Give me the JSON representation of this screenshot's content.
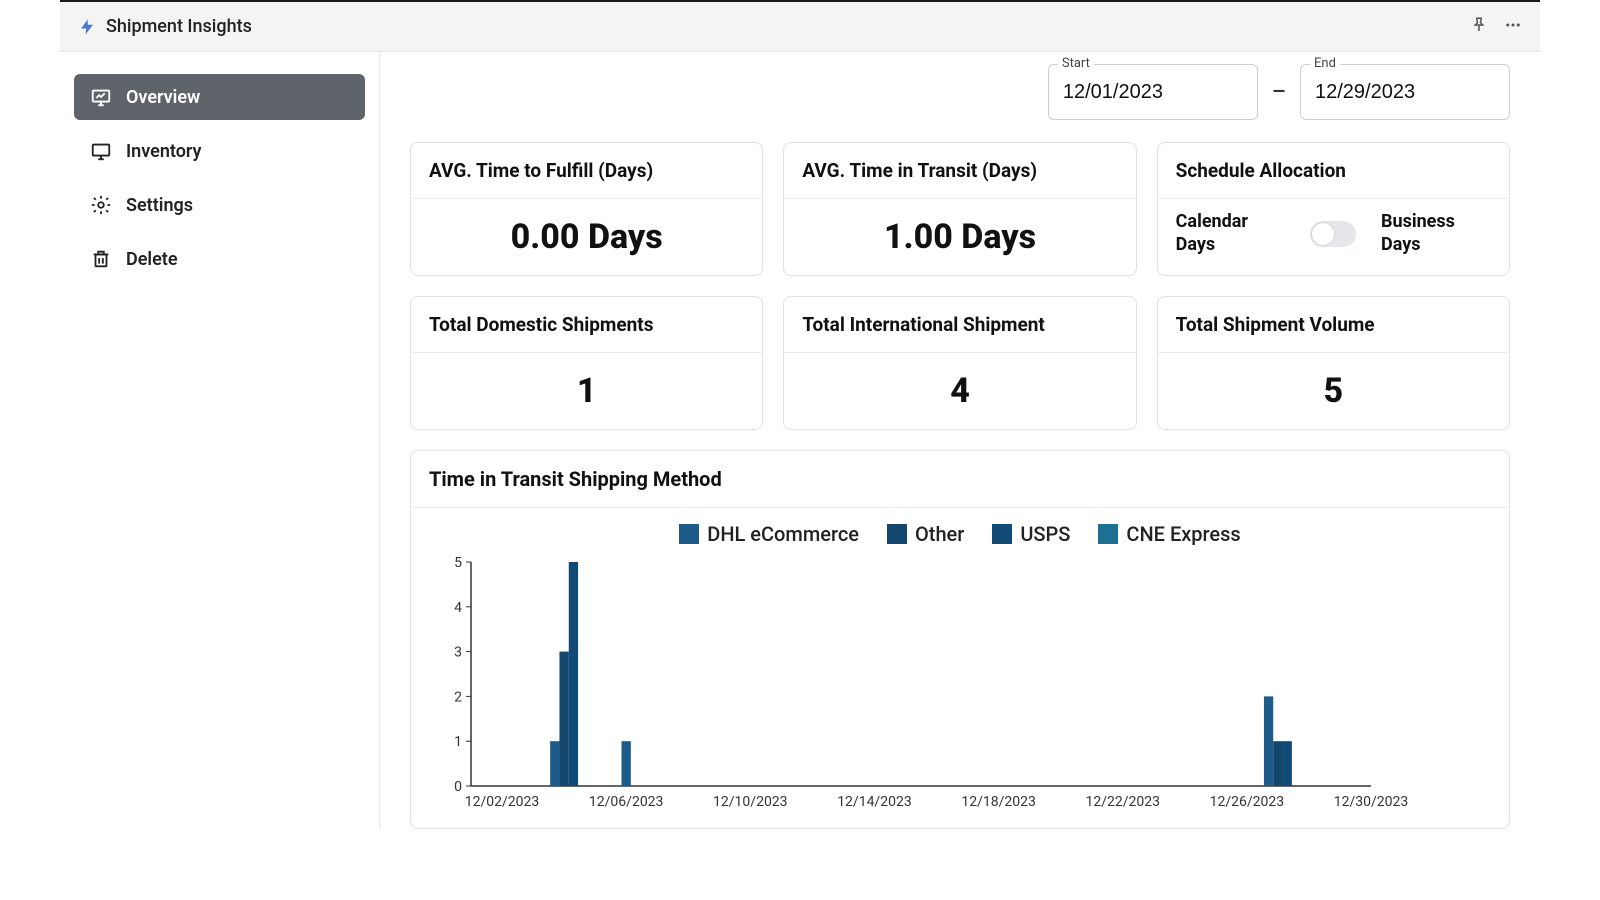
{
  "header": {
    "title": "Shipment Insights"
  },
  "sidebar": {
    "items": [
      {
        "label": "Overview",
        "icon": "overview",
        "active": true
      },
      {
        "label": "Inventory",
        "icon": "inventory",
        "active": false
      },
      {
        "label": "Settings",
        "icon": "gear",
        "active": false
      },
      {
        "label": "Delete",
        "icon": "trash",
        "active": false
      }
    ]
  },
  "dateRange": {
    "startLabel": "Start",
    "startValue": "12/01/2023",
    "endLabel": "End",
    "endValue": "12/29/2023",
    "separator": "–"
  },
  "metrics": {
    "avgFulfill": {
      "title": "AVG. Time to Fulfill (Days)",
      "value": "0.00 Days"
    },
    "avgTransit": {
      "title": "AVG. Time in Transit (Days)",
      "value": "1.00 Days"
    },
    "schedule": {
      "title": "Schedule Allocation",
      "leftLabel": "Calendar Days",
      "rightLabel": "Business Days",
      "toggleOn": false
    },
    "domestic": {
      "title": "Total Domestic Shipments",
      "value": "1"
    },
    "international": {
      "title": "Total International Shipment",
      "value": "4"
    },
    "volume": {
      "title": "Total Shipment Volume",
      "value": "5"
    }
  },
  "chart": {
    "title": "Time in Transit Shipping Method",
    "type": "bar",
    "colors": {
      "dhl": "#1d5b8a",
      "other": "#13476d",
      "usps": "#104a75",
      "cne": "#1d6f93",
      "axis": "#333333",
      "tickText": "#333333",
      "background": "#ffffff"
    },
    "legend": [
      {
        "key": "dhl",
        "label": "DHL eCommerce"
      },
      {
        "key": "other",
        "label": "Other"
      },
      {
        "key": "usps",
        "label": "USPS"
      },
      {
        "key": "cne",
        "label": "CNE Express"
      }
    ],
    "y": {
      "min": 0,
      "max": 5,
      "step": 1,
      "fontsize": 14
    },
    "x": {
      "ticks": [
        "12/02/2023",
        "12/06/2023",
        "12/10/2023",
        "12/14/2023",
        "12/18/2023",
        "12/22/2023",
        "12/26/2023",
        "12/30/2023"
      ],
      "fontsize": 14,
      "dateMin": "12/01/2023",
      "dateMax": "12/30/2023"
    },
    "barWidthDays": 0.3,
    "bars": [
      {
        "date": "12/04/2023",
        "offset": -0.3,
        "value": 1,
        "colorKey": "dhl"
      },
      {
        "date": "12/04/2023",
        "offset": 0.0,
        "value": 3,
        "colorKey": "other"
      },
      {
        "date": "12/04/2023",
        "offset": 0.3,
        "value": 5,
        "colorKey": "usps"
      },
      {
        "date": "12/06/2023",
        "offset": 0.0,
        "value": 1,
        "colorKey": "dhl"
      },
      {
        "date": "12/27/2023",
        "offset": -0.3,
        "value": 2,
        "colorKey": "dhl"
      },
      {
        "date": "12/27/2023",
        "offset": 0.0,
        "value": 1,
        "colorKey": "other"
      },
      {
        "date": "12/27/2023",
        "offset": 0.3,
        "value": 1,
        "colorKey": "usps"
      }
    ],
    "plot": {
      "widthPx": 950,
      "heightPx": 260,
      "marginLeft": 42,
      "marginBottom": 30,
      "marginTop": 6,
      "marginRight": 8
    }
  }
}
